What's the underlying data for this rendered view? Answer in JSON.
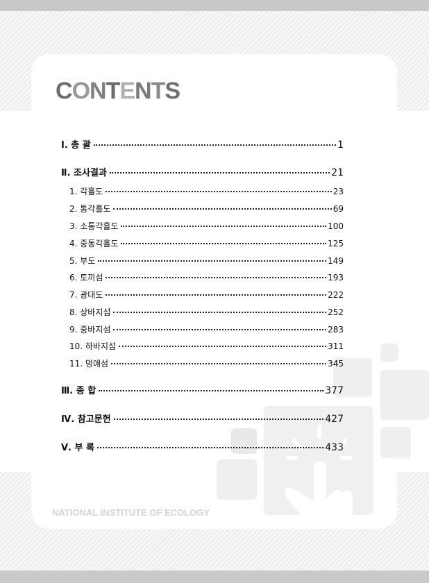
{
  "title": {
    "text": "CONTENTS",
    "letter_colors": [
      "#6d6d6d",
      "#9a9a9a",
      "#808080",
      "#6a6a6a",
      "#b0b0b0",
      "#7a7a7a",
      "#8a8a8a",
      "#6f6f6f"
    ]
  },
  "toc": [
    {
      "level": "main",
      "label": "Ⅰ. 총  괄",
      "page": "1"
    },
    {
      "level": "main",
      "label": "Ⅱ. 조사결과",
      "page": "21"
    },
    {
      "level": "sub",
      "label": "1. 각흘도",
      "page": "23"
    },
    {
      "level": "sub",
      "label": "2. 통각흘도",
      "page": "69"
    },
    {
      "level": "sub",
      "label": "3. 소통각흘도",
      "page": "100"
    },
    {
      "level": "sub",
      "label": "4. 중통각흘도",
      "page": "125"
    },
    {
      "level": "sub",
      "label": "5. 부도",
      "page": "149"
    },
    {
      "level": "sub",
      "label": "6. 토끼섬",
      "page": "193"
    },
    {
      "level": "sub",
      "label": "7. 광대도",
      "page": "222"
    },
    {
      "level": "sub",
      "label": "8. 상바지섬",
      "page": "252"
    },
    {
      "level": "sub",
      "label": "9. 중바지섬",
      "page": "283"
    },
    {
      "level": "sub",
      "label": "10. 하바지섬",
      "page": "311"
    },
    {
      "level": "sub",
      "label": "11. 멍애섬",
      "page": "345"
    },
    {
      "level": "main",
      "label": "Ⅲ. 종  합",
      "page": "377"
    },
    {
      "level": "main",
      "label": "Ⅳ. 참고문헌",
      "page": "427"
    },
    {
      "level": "main",
      "label": "Ⅴ. 부  록",
      "page": "433"
    }
  ],
  "footer": "NATIONAL INSTITUTE OF ECOLOGY",
  "decoration_icon": "hand-pointer-icon"
}
